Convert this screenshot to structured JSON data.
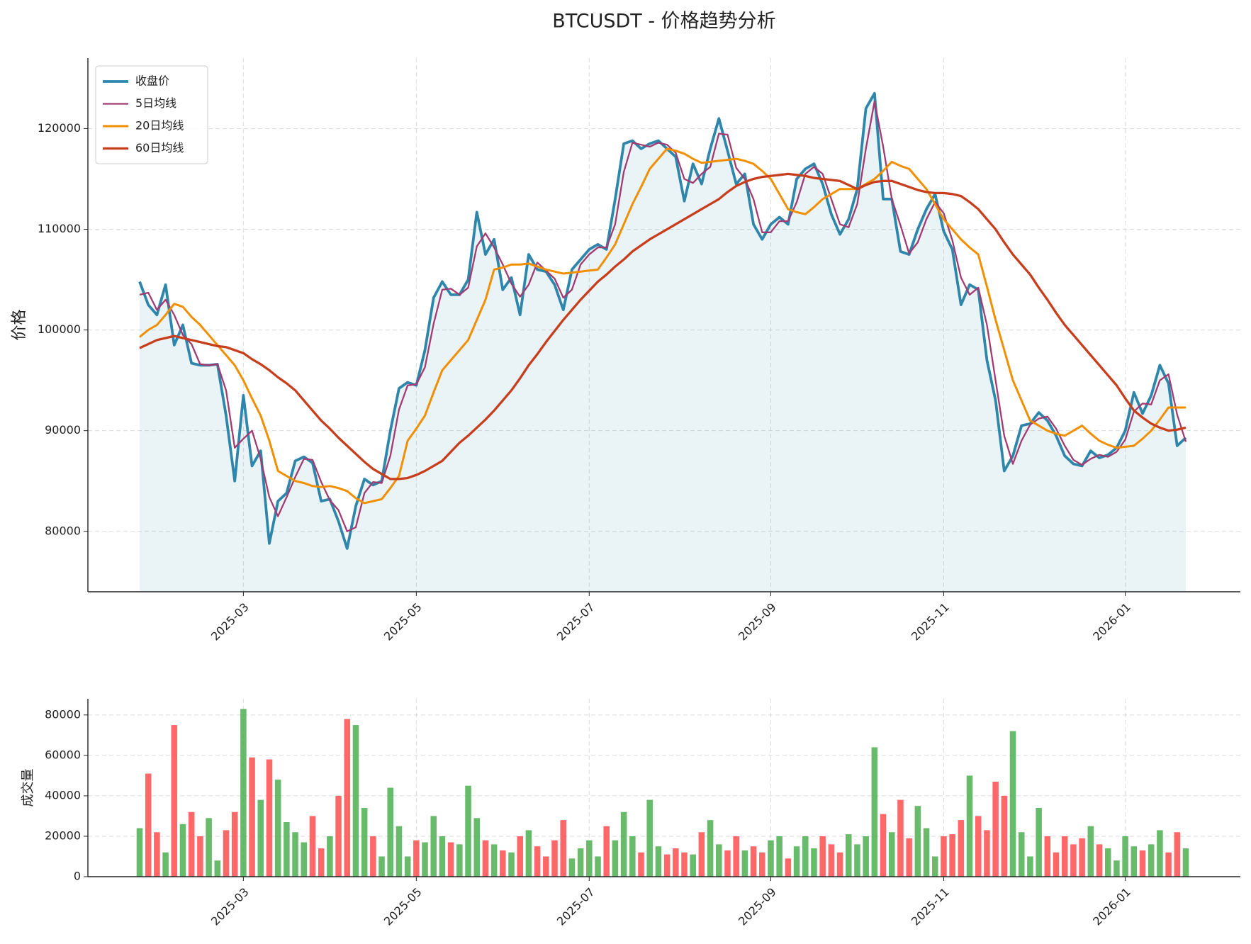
{
  "chart_data": [
    {
      "type": "line",
      "title": "BTCUSDT - 价格趋势分析",
      "ylabel": "价格",
      "categories": [
        null,
        null,
        null,
        null,
        null,
        null,
        null,
        null,
        null,
        null,
        null,
        null,
        "2025-03",
        null,
        null,
        null,
        null,
        null,
        null,
        null,
        null,
        null,
        null,
        null,
        null,
        null,
        null,
        null,
        null,
        null,
        null,
        null,
        "2025-05",
        null,
        null,
        null,
        null,
        null,
        null,
        null,
        null,
        null,
        null,
        null,
        null,
        null,
        null,
        null,
        null,
        null,
        null,
        null,
        "2025-07",
        null,
        null,
        null,
        null,
        null,
        null,
        null,
        null,
        null,
        null,
        null,
        null,
        null,
        null,
        null,
        null,
        null,
        null,
        null,
        null,
        "2025-09",
        null,
        null,
        null,
        null,
        null,
        null,
        null,
        null,
        null,
        null,
        null,
        null,
        null,
        null,
        null,
        null,
        null,
        null,
        null,
        "2025-11",
        null,
        null,
        null,
        null,
        null,
        null,
        null,
        null,
        null,
        null,
        null,
        null,
        null,
        null,
        null,
        null,
        null,
        null,
        null,
        null,
        "2026-01",
        null,
        null,
        null,
        null,
        null,
        null,
        null
      ],
      "series": [
        {
          "name": "收盘价",
          "color": "#2e86ab",
          "width": 3.8,
          "area": true,
          "values": [
            104800,
            102500,
            101500,
            104500,
            98500,
            100500,
            96700,
            96500,
            96500,
            96600,
            91500,
            85000,
            93500,
            86500,
            88000,
            78800,
            83000,
            83800,
            87000,
            87400,
            86800,
            83000,
            83200,
            81000,
            78300,
            82500,
            85200,
            84600,
            85000,
            90000,
            94200,
            94800,
            94500,
            98000,
            103200,
            104800,
            103500,
            103500,
            105000,
            111700,
            107500,
            109000,
            104000,
            105200,
            101500,
            107500,
            106000,
            105800,
            104500,
            102000,
            106000,
            107000,
            108000,
            108500,
            108000,
            113000,
            118500,
            118800,
            118000,
            118500,
            118800,
            118000,
            117200,
            112800,
            116500,
            114500,
            118000,
            121000,
            117800,
            114500,
            115500,
            110500,
            109000,
            110500,
            111200,
            110500,
            115000,
            116000,
            116500,
            114500,
            111500,
            109500,
            111000,
            114000,
            122000,
            123500,
            113000,
            113000,
            107800,
            107500,
            110000,
            112000,
            113500,
            109800,
            108000,
            102500,
            104500,
            104000,
            97000,
            93000,
            86000,
            87500,
            90500,
            90700,
            91800,
            91000,
            89500,
            87500,
            86700,
            86500,
            88000,
            87300,
            87600,
            88300,
            90000,
            93800,
            91700,
            93500,
            96500,
            94700,
            88500,
            89300
          ]
        },
        {
          "name": "5日均线",
          "color": "#a23b72",
          "width": 2.3,
          "values": [
            103500,
            103700,
            102000,
            103000,
            101500,
            99500,
            98600,
            96600,
            96500,
            96600,
            94000,
            88300,
            89200,
            90000,
            87200,
            83400,
            81500,
            83400,
            85400,
            87200,
            87100,
            84900,
            83100,
            82100,
            80000,
            80400,
            83800,
            84900,
            84800,
            87500,
            92100,
            94500,
            94600,
            96300,
            100600,
            104000,
            104100,
            103500,
            104200,
            108300,
            109600,
            108200,
            106500,
            104600,
            103300,
            104500,
            106700,
            105900,
            105100,
            103200,
            104000,
            106500,
            107500,
            108200,
            108200,
            110500,
            115700,
            118600,
            118400,
            118200,
            118600,
            118400,
            117600,
            115000,
            114600,
            115500,
            116200,
            119500,
            119400,
            116100,
            115000,
            113000,
            109700,
            109700,
            110800,
            110800,
            112700,
            115500,
            116200,
            115500,
            113000,
            110500,
            110200,
            112500,
            118000,
            122700,
            118200,
            113000,
            110400,
            107600,
            108700,
            111000,
            112700,
            111600,
            108900,
            105200,
            103500,
            104200,
            100500,
            95000,
            89500,
            86700,
            89000,
            90600,
            91200,
            91400,
            90200,
            88500,
            87100,
            86600,
            87200,
            87600,
            87400,
            87900,
            89100,
            91900,
            92700,
            92600,
            95000,
            95600,
            91600,
            88900
          ]
        },
        {
          "name": "20日均线",
          "color": "#f18f01",
          "width": 3,
          "values": [
            99300,
            100000,
            100500,
            101500,
            102600,
            102300,
            101300,
            100500,
            99500,
            98500,
            97500,
            96500,
            95000,
            93200,
            91500,
            89000,
            86000,
            85500,
            85000,
            84800,
            84500,
            84400,
            84500,
            84300,
            84000,
            83300,
            82800,
            83000,
            83200,
            84300,
            85500,
            89000,
            90200,
            91500,
            93800,
            96000,
            97000,
            98000,
            99000,
            101000,
            103000,
            106000,
            106200,
            106500,
            106500,
            106600,
            106300,
            106000,
            105800,
            105600,
            105700,
            105800,
            105900,
            106000,
            107200,
            108500,
            110500,
            112500,
            114200,
            116000,
            117000,
            118000,
            117800,
            117500,
            117000,
            116600,
            116700,
            116800,
            116900,
            117000,
            116800,
            116500,
            115800,
            115000,
            113500,
            112000,
            111700,
            111500,
            112200,
            113000,
            113500,
            114000,
            114000,
            114000,
            114500,
            115000,
            115800,
            116700,
            116300,
            116000,
            115000,
            114000,
            112500,
            111000,
            110000,
            109000,
            108200,
            107500,
            104300,
            101000,
            98000,
            95000,
            93000,
            91000,
            90500,
            90000,
            89700,
            89500,
            90000,
            90500,
            89700,
            89000,
            88600,
            88300,
            88400,
            88500,
            89200,
            90000,
            91100,
            92300,
            92300,
            92300
          ]
        },
        {
          "name": "60日均线",
          "color": "#c73e1d",
          "width": 3.3,
          "values": [
            98200,
            98600,
            99000,
            99200,
            99400,
            99200,
            99000,
            98800,
            98600,
            98400,
            98300,
            98000,
            97700,
            97100,
            96600,
            96000,
            95300,
            94700,
            94000,
            93000,
            92000,
            91000,
            90200,
            89300,
            88500,
            87700,
            86900,
            86200,
            85700,
            85200,
            85200,
            85300,
            85600,
            86000,
            86500,
            87000,
            87900,
            88800,
            89500,
            90300,
            91100,
            92000,
            93000,
            94000,
            95200,
            96500,
            97600,
            98800,
            99900,
            101000,
            102000,
            103000,
            103900,
            104800,
            105500,
            106300,
            107000,
            107800,
            108400,
            109000,
            109500,
            110000,
            110500,
            111000,
            111500,
            112000,
            112500,
            113000,
            113700,
            114300,
            114700,
            115000,
            115200,
            115300,
            115400,
            115500,
            115400,
            115300,
            115100,
            115000,
            114900,
            114800,
            114400,
            114000,
            114400,
            114700,
            114800,
            114800,
            114500,
            114200,
            113900,
            113700,
            113600,
            113600,
            113500,
            113300,
            112700,
            112000,
            111000,
            110000,
            108700,
            107500,
            106500,
            105500,
            104200,
            103000,
            101700,
            100500,
            99500,
            98500,
            97500,
            96500,
            95500,
            94500,
            93200,
            92000,
            91300,
            90700,
            90300,
            90000,
            90100,
            90300
          ]
        }
      ],
      "ylim": [
        74000,
        127000
      ],
      "yticks": [
        80000,
        90000,
        100000,
        110000,
        120000
      ],
      "grid": true,
      "legend": "upper left"
    },
    {
      "type": "bar",
      "ylabel": "成交量",
      "up_color": "#4caf50",
      "down_color": "#ff4d4d",
      "values": [
        24000,
        51000,
        22000,
        12000,
        75000,
        26000,
        32000,
        20000,
        29000,
        8000,
        23000,
        32000,
        83000,
        59000,
        38000,
        58000,
        48000,
        27000,
        22000,
        17000,
        30000,
        14000,
        20000,
        40000,
        78000,
        75000,
        34000,
        20000,
        10000,
        44000,
        25000,
        10000,
        18000,
        17000,
        30000,
        20000,
        17000,
        16000,
        45000,
        29000,
        18000,
        16000,
        13000,
        12000,
        20000,
        23000,
        15000,
        10000,
        18000,
        28000,
        9000,
        14000,
        18000,
        10000,
        25000,
        18000,
        32000,
        20000,
        12000,
        38000,
        15000,
        11000,
        14000,
        12000,
        11000,
        22000,
        28000,
        16000,
        13000,
        20000,
        13000,
        15000,
        12000,
        18000,
        20000,
        9000,
        15000,
        20000,
        14000,
        20000,
        16000,
        12000,
        21000,
        16000,
        20000,
        64000,
        31000,
        22000,
        38000,
        19000,
        35000,
        24000,
        10000,
        20000,
        21000,
        28000,
        50000,
        30000,
        23000,
        47000,
        40000,
        72000,
        22000,
        10000,
        34000,
        20000,
        12000,
        20000,
        16000,
        19000,
        25000,
        16000,
        14000,
        8000,
        20000,
        15000,
        13000,
        16000,
        23000,
        12000,
        22000,
        14000
      ],
      "ylim": [
        0,
        88000
      ],
      "yticks": [
        0,
        20000,
        40000,
        60000,
        80000
      ],
      "grid": true
    }
  ]
}
